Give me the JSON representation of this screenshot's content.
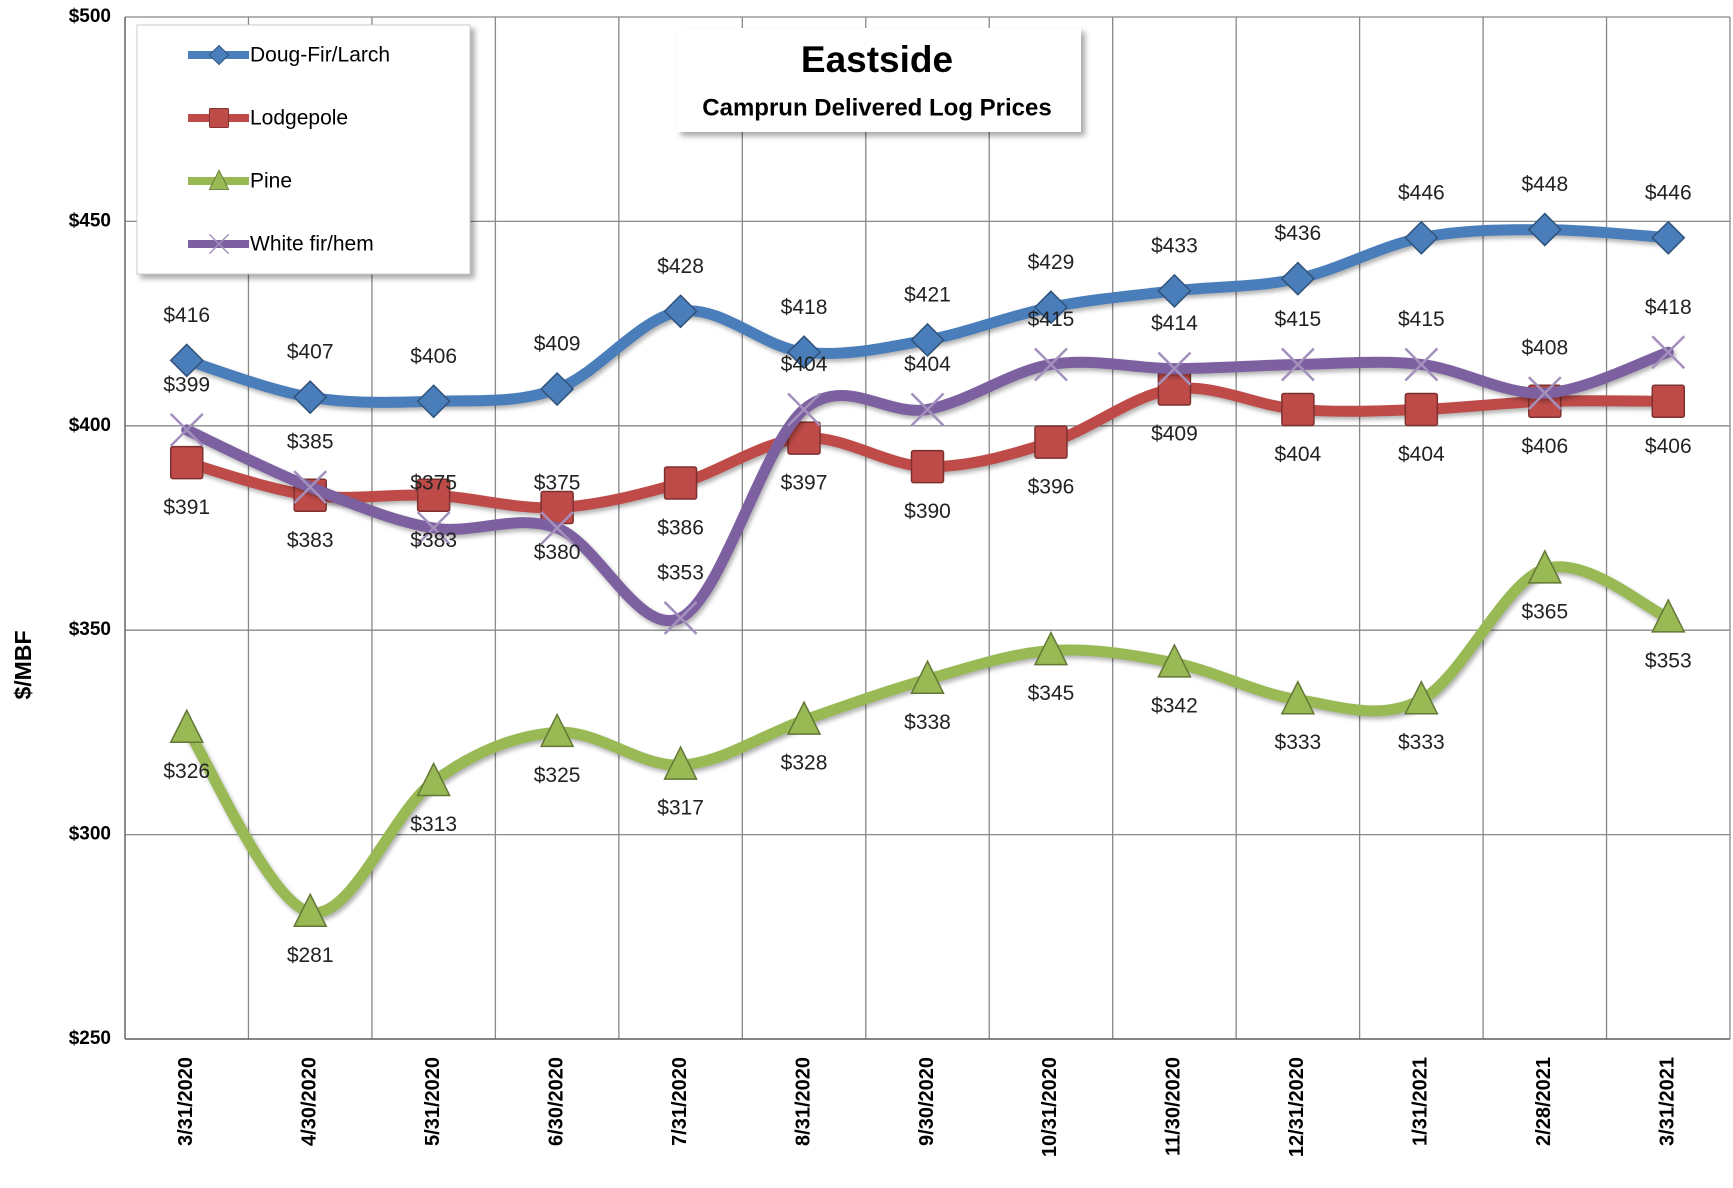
{
  "chart_data": {
    "type": "line",
    "title": "Eastside",
    "subtitle": "Camprun Delivered Log Prices",
    "y_label": "$/MBF",
    "categories": [
      "3/31/2020",
      "4/30/2020",
      "5/31/2020",
      "6/30/2020",
      "7/31/2020",
      "8/31/2020",
      "9/30/2020",
      "10/31/2020",
      "11/30/2020",
      "12/31/2020",
      "1/31/2021",
      "2/28/2021",
      "3/31/2021"
    ],
    "series": [
      {
        "name": "Doug-Fir/Larch",
        "color": "#4a7ebb",
        "marker": "diamond",
        "values": [
          416,
          407,
          406,
          409,
          428,
          418,
          421,
          429,
          433,
          436,
          446,
          448,
          446
        ],
        "value_labels": [
          "$416",
          "$407",
          "$406",
          "$409",
          "$428",
          "$418",
          "$421",
          "$429",
          "$433",
          "$436",
          "$446",
          "$448",
          "$446"
        ]
      },
      {
        "name": "Lodgepole",
        "color": "#be4b48",
        "marker": "square",
        "values": [
          391,
          383,
          383,
          380,
          386,
          397,
          390,
          396,
          409,
          404,
          404,
          406,
          406
        ],
        "value_labels": [
          "$391",
          "$383",
          "$383",
          "$380",
          "$386",
          "$397",
          "$390",
          "$396",
          "$409",
          "$404",
          "$404",
          "$406",
          "$406"
        ]
      },
      {
        "name": "Pine",
        "color": "#98b954",
        "marker": "triangle",
        "values": [
          326,
          281,
          313,
          325,
          317,
          328,
          338,
          345,
          342,
          333,
          333,
          365,
          353
        ],
        "value_labels": [
          "$326",
          "$281",
          "$313",
          "$325",
          "$317",
          "$328",
          "$338",
          "$345",
          "$342",
          "$333",
          "$333",
          "$365",
          "$353"
        ]
      },
      {
        "name": "White fir/hem",
        "color": "#7d60a0",
        "marker": "x",
        "values": [
          399,
          385,
          375,
          375,
          353,
          404,
          404,
          415,
          414,
          415,
          415,
          408,
          418
        ],
        "value_labels": [
          "$399",
          "$385",
          "$375",
          "$375",
          "$353",
          "$404",
          "$404",
          "$415",
          "$414",
          "$415",
          "$415",
          "$408",
          "$418"
        ]
      }
    ],
    "ylim": [
      250,
      500
    ],
    "yticks": [
      {
        "value": 250,
        "label": "$250"
      },
      {
        "value": 300,
        "label": "$300"
      },
      {
        "value": 350,
        "label": "$350"
      },
      {
        "value": 400,
        "label": "$400"
      },
      {
        "value": 450,
        "label": "$450"
      },
      {
        "value": 500,
        "label": "$500"
      }
    ],
    "grid": true,
    "legend": "top-left"
  }
}
